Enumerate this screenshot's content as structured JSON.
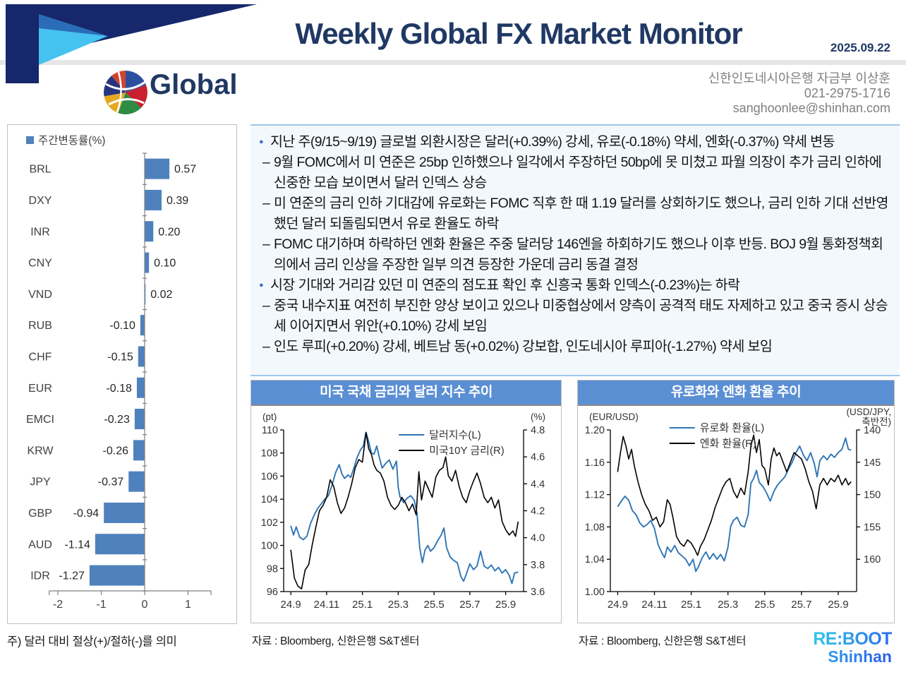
{
  "header": {
    "title": "Weekly Global FX Market Monitor",
    "date": "2025.09.22",
    "section": "Global",
    "contact_org": "신한인도네시아은행 자금부 이상훈",
    "contact_phone": "021-2975-1716",
    "contact_email": "sanghoonlee@shinhan.com"
  },
  "colors": {
    "title_navy": "#203864",
    "chart_header_blue": "#5b8fd4",
    "bar_blue": "#4f81bd",
    "line_blue": "#2e75b6",
    "bullet_blue": "#4472c4",
    "logo_cyan": "#2ec8e8",
    "logo_blue": "#2b6cf0"
  },
  "commentary": {
    "items": [
      {
        "level": 1,
        "text": "지난 주(9/15~9/19) 글로벌 외환시장은 달러(+0.39%) 강세, 유로(-0.18%) 약세, 엔화(-0.37%) 약세 변동"
      },
      {
        "level": 2,
        "text": "9월 FOMC에서 미 연준은 25bp 인하했으나 일각에서 주장하던 50bp에 못 미쳤고 파월 의장이 추가 금리 인하에 신중한 모습 보이면서 달러 인덱스 상승"
      },
      {
        "level": 2,
        "text": "미 연준의 금리 인하 기대감에 유로화는 FOMC 직후 한 때 1.19 달러를 상회하기도 했으나, 금리 인하 기대 선반영했던 달러 되돌림되면서 유로 환율도 하락"
      },
      {
        "level": 2,
        "text": "FOMC 대기하며 하락하던 엔화 환율은 주중 달러당 146엔을 하회하기도 했으나 이후 반등. BOJ 9월 통화정책회의에서 금리 인상을 주장한 일부 의견 등장한 가운데 금리 동결 결정"
      },
      {
        "level": 1,
        "text": "시장 기대와 거리감 있던 미 연준의 점도표 확인 후 신흥국 통화 인덱스(-0.23%)는 하락"
      },
      {
        "level": 2,
        "text": "중국 내수지표 여전히 부진한 양상 보이고 있으나 미중협상에서 양측이 공격적 태도 자제하고 있고 중국 증시 상승세 이어지면서 위안(+0.10%) 강세 보임"
      },
      {
        "level": 2,
        "text": "인도 루피(+0.20%) 강세, 베트남 동(+0.02%) 강보합, 인도네시아 루피아(-1.27%) 약세 보임"
      }
    ]
  },
  "bar_note": "주) 달러 대비 절상(+)/절하(-)를 의미",
  "footer_logo": {
    "line1": "RE:BOOT",
    "line2": "Shinhan"
  },
  "chart_data": [
    {
      "id": "weekly-change-bars",
      "type": "bar",
      "orientation": "horizontal",
      "legend": "주간변동률(%)",
      "categories": [
        "BRL",
        "DXY",
        "INR",
        "CNY",
        "VND",
        "RUB",
        "CHF",
        "EUR",
        "EMCI",
        "KRW",
        "JPY",
        "GBP",
        "AUD",
        "IDR"
      ],
      "values": [
        0.57,
        0.39,
        0.2,
        0.1,
        0.02,
        -0.1,
        -0.15,
        -0.18,
        -0.23,
        -0.26,
        -0.37,
        -0.94,
        -1.14,
        -1.27
      ],
      "value_labels": [
        "0.57",
        "0.39",
        "0.20",
        "0.10",
        "0.02",
        "-0.10",
        "-0.15",
        "-0.18",
        "-0.23",
        "-0.26",
        "-0.37",
        "-0.94",
        "-1.14",
        "-1.27"
      ],
      "xlim": [
        -2.2,
        1.53
      ],
      "xticks": [
        -2,
        -1,
        0,
        1
      ],
      "xtick_labels": [
        "-2",
        "-1",
        "0",
        "1"
      ],
      "bar_color": "#4f81bd",
      "note": "주) 달러 대비 절상(+)/절하(-)를 의미"
    },
    {
      "id": "us-rates-dxy",
      "type": "line",
      "title": "미국 국채 금리와 달러 지수 추이",
      "source": "자료 : Bloomberg, 신한은행 S&T센터",
      "left_axis": {
        "unit": "(pt)",
        "min": 96,
        "max": 110,
        "ticks": [
          96,
          98,
          100,
          102,
          104,
          106,
          108,
          110
        ],
        "tick_labels": [
          "96",
          "98",
          "100",
          "102",
          "104",
          "106",
          "108",
          "110"
        ]
      },
      "right_axis": {
        "unit_lines": [
          "(%)"
        ],
        "min": 3.6,
        "max": 4.8,
        "reversed": false,
        "ticks": [
          3.6,
          3.8,
          4.0,
          4.2,
          4.4,
          4.6,
          4.8
        ],
        "tick_labels": [
          "3.6",
          "3.8",
          "4.0",
          "4.2",
          "4.4",
          "4.6",
          "4.8"
        ]
      },
      "x_ticks": {
        "months": [
          0,
          2,
          4,
          6,
          8,
          10,
          12
        ],
        "labels": [
          "24.9",
          "24.11",
          "25.1",
          "25.3",
          "25.5",
          "25.7",
          "25.9"
        ],
        "span": 12.7
      },
      "legend_pos": {
        "x_frac": 0.48,
        "y": 46
      },
      "series": [
        {
          "name": "달러지수(L)",
          "axis": "left",
          "color": "#2e75b6",
          "width": 1.9,
          "x": [
            0,
            0.15,
            0.3,
            0.5,
            0.7,
            0.9,
            1.1,
            1.3,
            1.5,
            1.7,
            1.9,
            2.1,
            2.3,
            2.5,
            2.7,
            2.85,
            3.0,
            3.2,
            3.35,
            3.5,
            3.7,
            3.9,
            4.05,
            4.2,
            4.35,
            4.5,
            4.65,
            4.8,
            4.95,
            5.1,
            5.3,
            5.5,
            5.7,
            5.9,
            6.0,
            6.1,
            6.3,
            6.5,
            6.7,
            6.9,
            7.05,
            7.2,
            7.35,
            7.5,
            7.65,
            7.8,
            8.0,
            8.2,
            8.4,
            8.55,
            8.7,
            8.9,
            9.1,
            9.3,
            9.5,
            9.65,
            9.8,
            10.0,
            10.2,
            10.4,
            10.6,
            10.8,
            11.0,
            11.2,
            11.4,
            11.6,
            11.8,
            12.0,
            12.2,
            12.35,
            12.5,
            12.7
          ],
          "y": [
            101.7,
            100.9,
            101.6,
            100.7,
            100.5,
            100.8,
            101.9,
            102.6,
            103.2,
            103.6,
            104.0,
            104.3,
            105.2,
            106.3,
            107.0,
            106.2,
            105.8,
            106.1,
            105.9,
            106.6,
            107.6,
            108.3,
            108.6,
            109.8,
            109.0,
            108.0,
            107.9,
            108.6,
            107.6,
            106.7,
            107.1,
            107.4,
            106.6,
            107.3,
            105.0,
            104.2,
            103.7,
            104.1,
            104.3,
            103.9,
            102.8,
            99.8,
            98.5,
            99.6,
            100.0,
            99.5,
            99.8,
            100.4,
            100.9,
            101.5,
            99.8,
            99.0,
            98.7,
            98.5,
            97.3,
            96.9,
            97.5,
            98.4,
            97.9,
            98.2,
            99.5,
            98.2,
            98.0,
            98.3,
            97.8,
            98.1,
            97.6,
            97.9,
            97.4,
            96.7,
            97.6,
            97.7
          ]
        },
        {
          "name": "미국10Y 금리(R)",
          "axis": "right",
          "color": "#000000",
          "width": 1.6,
          "x": [
            0,
            0.2,
            0.4,
            0.6,
            0.8,
            1.0,
            1.2,
            1.4,
            1.6,
            1.8,
            2.0,
            2.2,
            2.4,
            2.6,
            2.8,
            3.0,
            3.2,
            3.4,
            3.6,
            3.8,
            4.0,
            4.2,
            4.35,
            4.5,
            4.65,
            4.8,
            5.0,
            5.2,
            5.4,
            5.6,
            5.8,
            6.0,
            6.2,
            6.4,
            6.6,
            6.8,
            7.0,
            7.15,
            7.3,
            7.5,
            7.7,
            7.9,
            8.1,
            8.3,
            8.5,
            8.65,
            8.8,
            9.0,
            9.2,
            9.4,
            9.6,
            9.8,
            10.0,
            10.2,
            10.4,
            10.6,
            10.8,
            11.0,
            11.2,
            11.4,
            11.6,
            11.8,
            12.0,
            12.2,
            12.4,
            12.55,
            12.7
          ],
          "y": [
            3.91,
            3.7,
            3.64,
            3.62,
            3.76,
            3.8,
            3.95,
            4.08,
            4.2,
            4.24,
            4.3,
            4.43,
            4.38,
            4.26,
            4.18,
            4.22,
            4.3,
            4.4,
            4.52,
            4.58,
            4.56,
            4.78,
            4.66,
            4.62,
            4.54,
            4.5,
            4.48,
            4.42,
            4.3,
            4.24,
            4.21,
            4.24,
            4.3,
            4.26,
            4.2,
            4.25,
            4.17,
            4.49,
            4.28,
            4.42,
            4.36,
            4.3,
            4.45,
            4.5,
            4.52,
            4.6,
            4.46,
            4.42,
            4.5,
            4.38,
            4.3,
            4.26,
            4.35,
            4.42,
            4.48,
            4.4,
            4.3,
            4.26,
            4.3,
            4.22,
            4.28,
            4.12,
            4.06,
            4.02,
            4.05,
            4.01,
            4.12
          ]
        }
      ]
    },
    {
      "id": "eur-jpy-fx",
      "type": "line",
      "title": "유로화와 엔화 환율 추이",
      "source": "자료 : Bloomberg, 신한은행 S&T센터",
      "left_axis": {
        "unit": "(EUR/USD)",
        "min": 1.0,
        "max": 1.2,
        "ticks": [
          1.0,
          1.04,
          1.08,
          1.12,
          1.16,
          1.2
        ],
        "tick_labels": [
          "1.00",
          "1.04",
          "1.08",
          "1.12",
          "1.16",
          "1.20"
        ]
      },
      "right_axis": {
        "unit_lines": [
          "(USD/JPY,",
          "축반전)"
        ],
        "min": 140,
        "max": 165,
        "reversed": true,
        "ticks": [
          140,
          145,
          150,
          155,
          160
        ],
        "tick_labels": [
          "140",
          "145",
          "150",
          "155",
          "160"
        ]
      },
      "x_ticks": {
        "months": [
          0,
          2,
          4,
          6,
          8,
          10,
          12
        ],
        "labels": [
          "24.9",
          "24.11",
          "25.1",
          "25.3",
          "25.5",
          "25.7",
          "25.9"
        ],
        "span": 12.7
      },
      "legend_pos": {
        "x_frac": 0.24,
        "y": 36
      },
      "series": [
        {
          "name": "유로화 환율(L)",
          "axis": "left",
          "color": "#2e75b6",
          "width": 1.9,
          "x": [
            0,
            0.2,
            0.4,
            0.6,
            0.8,
            1.0,
            1.2,
            1.4,
            1.6,
            1.8,
            2.0,
            2.2,
            2.4,
            2.55,
            2.7,
            2.9,
            3.1,
            3.3,
            3.5,
            3.7,
            3.9,
            4.1,
            4.25,
            4.4,
            4.6,
            4.8,
            5.0,
            5.2,
            5.4,
            5.6,
            5.8,
            6.0,
            6.15,
            6.3,
            6.5,
            6.7,
            6.9,
            7.1,
            7.25,
            7.4,
            7.55,
            7.7,
            7.9,
            8.1,
            8.3,
            8.5,
            8.7,
            8.9,
            9.1,
            9.3,
            9.5,
            9.7,
            9.9,
            10.1,
            10.3,
            10.5,
            10.7,
            10.85,
            11.0,
            11.2,
            11.4,
            11.6,
            11.8,
            12.0,
            12.2,
            12.4,
            12.55,
            12.7
          ],
          "y": [
            1.105,
            1.112,
            1.118,
            1.113,
            1.1,
            1.095,
            1.085,
            1.08,
            1.083,
            1.088,
            1.078,
            1.058,
            1.048,
            1.042,
            1.055,
            1.049,
            1.057,
            1.048,
            1.044,
            1.04,
            1.032,
            1.04,
            1.025,
            1.031,
            1.042,
            1.049,
            1.04,
            1.047,
            1.04,
            1.046,
            1.038,
            1.055,
            1.081,
            1.088,
            1.092,
            1.082,
            1.08,
            1.095,
            1.134,
            1.14,
            1.15,
            1.135,
            1.13,
            1.122,
            1.112,
            1.124,
            1.132,
            1.137,
            1.142,
            1.152,
            1.16,
            1.172,
            1.18,
            1.169,
            1.162,
            1.172,
            1.158,
            1.142,
            1.162,
            1.168,
            1.163,
            1.17,
            1.166,
            1.172,
            1.176,
            1.19,
            1.176,
            1.175
          ]
        },
        {
          "name": "엔화 환율(R)",
          "axis": "right",
          "color": "#000000",
          "width": 1.6,
          "x": [
            0,
            0.15,
            0.3,
            0.45,
            0.6,
            0.75,
            0.9,
            1.1,
            1.3,
            1.5,
            1.7,
            1.9,
            2.1,
            2.3,
            2.5,
            2.7,
            2.85,
            3.0,
            3.2,
            3.4,
            3.6,
            3.8,
            4.0,
            4.2,
            4.35,
            4.5,
            4.7,
            4.9,
            5.1,
            5.3,
            5.5,
            5.7,
            5.9,
            6.1,
            6.3,
            6.5,
            6.7,
            6.9,
            7.1,
            7.25,
            7.4,
            7.55,
            7.7,
            7.85,
            8.0,
            8.2,
            8.35,
            8.5,
            8.65,
            8.8,
            9.0,
            9.2,
            9.4,
            9.6,
            9.8,
            10.0,
            10.2,
            10.4,
            10.6,
            10.8,
            11.0,
            11.2,
            11.4,
            11.6,
            11.8,
            12.0,
            12.2,
            12.4,
            12.55,
            12.7
          ],
          "y": [
            146.5,
            143.5,
            141.0,
            142.5,
            144.5,
            143.0,
            145.5,
            148.0,
            150.0,
            151.5,
            152.5,
            154.0,
            153.5,
            155.0,
            154.2,
            150.8,
            151.5,
            153.5,
            156.5,
            157.5,
            158.0,
            157.0,
            157.5,
            158.5,
            159.4,
            158.0,
            157.0,
            155.5,
            154.0,
            152.0,
            150.5,
            149.0,
            148.0,
            147.5,
            149.5,
            150.5,
            149.0,
            150.0,
            146.5,
            142.5,
            140.8,
            143.5,
            141.5,
            145.5,
            146.0,
            148.5,
            144.5,
            142.8,
            144.0,
            143.5,
            145.0,
            146.5,
            145.0,
            143.5,
            144.0,
            144.5,
            146.0,
            148.0,
            149.5,
            152.2,
            148.5,
            147.5,
            148.5,
            147.5,
            148.0,
            147.0,
            148.5,
            147.5,
            148.5,
            148.0
          ]
        }
      ]
    }
  ]
}
